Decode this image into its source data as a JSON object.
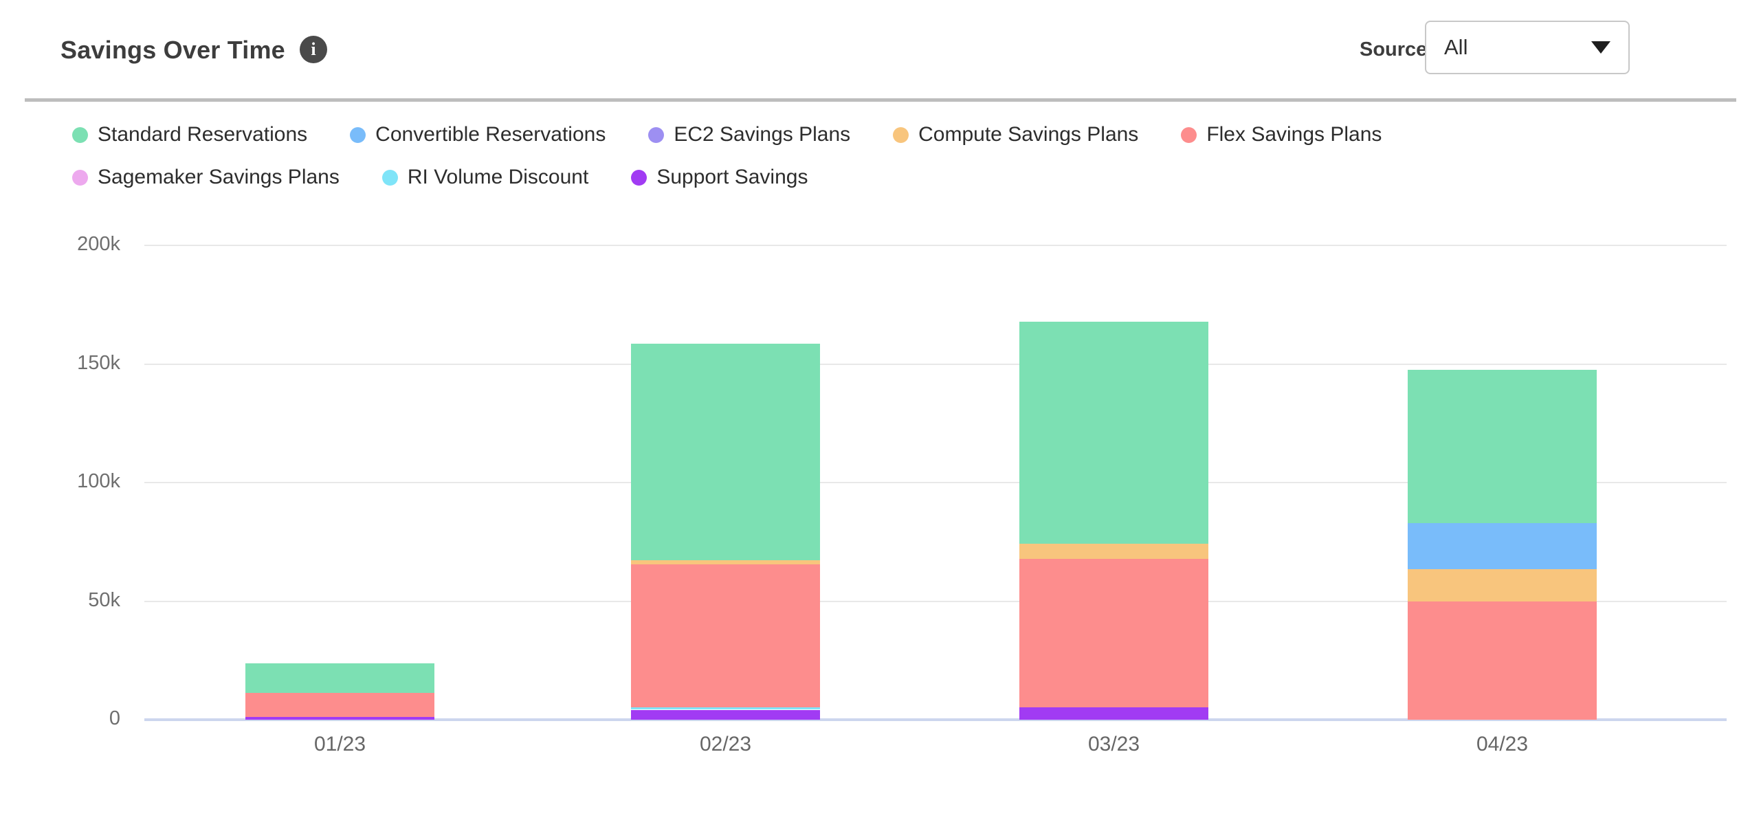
{
  "header": {
    "title": "Savings Over Time",
    "info_icon_glyph": "i",
    "source_label": "Source:",
    "source_value": "All"
  },
  "chart_data": {
    "type": "bar",
    "stacked": true,
    "title": "Savings Over Time",
    "categories": [
      "01/23",
      "02/23",
      "03/23",
      "04/23"
    ],
    "series": [
      {
        "name": "Standard Reservations",
        "color": "#7CE0B3",
        "values": [
          12400,
          91200,
          93500,
          64500
        ]
      },
      {
        "name": "Convertible Reservations",
        "color": "#79BCFA",
        "values": [
          0,
          0,
          0,
          19300
        ]
      },
      {
        "name": "EC2 Savings Plans",
        "color": "#9D8FF2",
        "values": [
          0,
          0,
          0,
          0
        ]
      },
      {
        "name": "Compute Savings Plans",
        "color": "#F8C57D",
        "values": [
          0,
          1800,
          6500,
          13800
        ]
      },
      {
        "name": "Flex Savings Plans",
        "color": "#FD8D8D",
        "values": [
          10000,
          60200,
          62500,
          49800
        ]
      },
      {
        "name": "Sagemaker Savings Plans",
        "color": "#EDA9EE",
        "values": [
          0,
          0,
          0,
          0
        ]
      },
      {
        "name": "RI Volume Discount",
        "color": "#7FE4F8",
        "values": [
          0,
          1100,
          0,
          0
        ]
      },
      {
        "name": "Support Savings",
        "color": "#A13BF3",
        "values": [
          1300,
          4200,
          5200,
          0
        ]
      }
    ],
    "stack_order": "reverse-legend",
    "ylim": [
      0,
      200000
    ],
    "yticks": [
      {
        "value": 0,
        "label": "0"
      },
      {
        "value": 50000,
        "label": "50k"
      },
      {
        "value": 100000,
        "label": "100k"
      },
      {
        "value": 150000,
        "label": "150k"
      },
      {
        "value": 200000,
        "label": "200k"
      }
    ],
    "legend_position": "top",
    "grid": "horizontal",
    "colors": {
      "gridline": "#e8e8e8",
      "baseline": "#ccd6ee",
      "tick_text": "#6e6e6e",
      "legend_text": "#2d2d2d"
    }
  }
}
